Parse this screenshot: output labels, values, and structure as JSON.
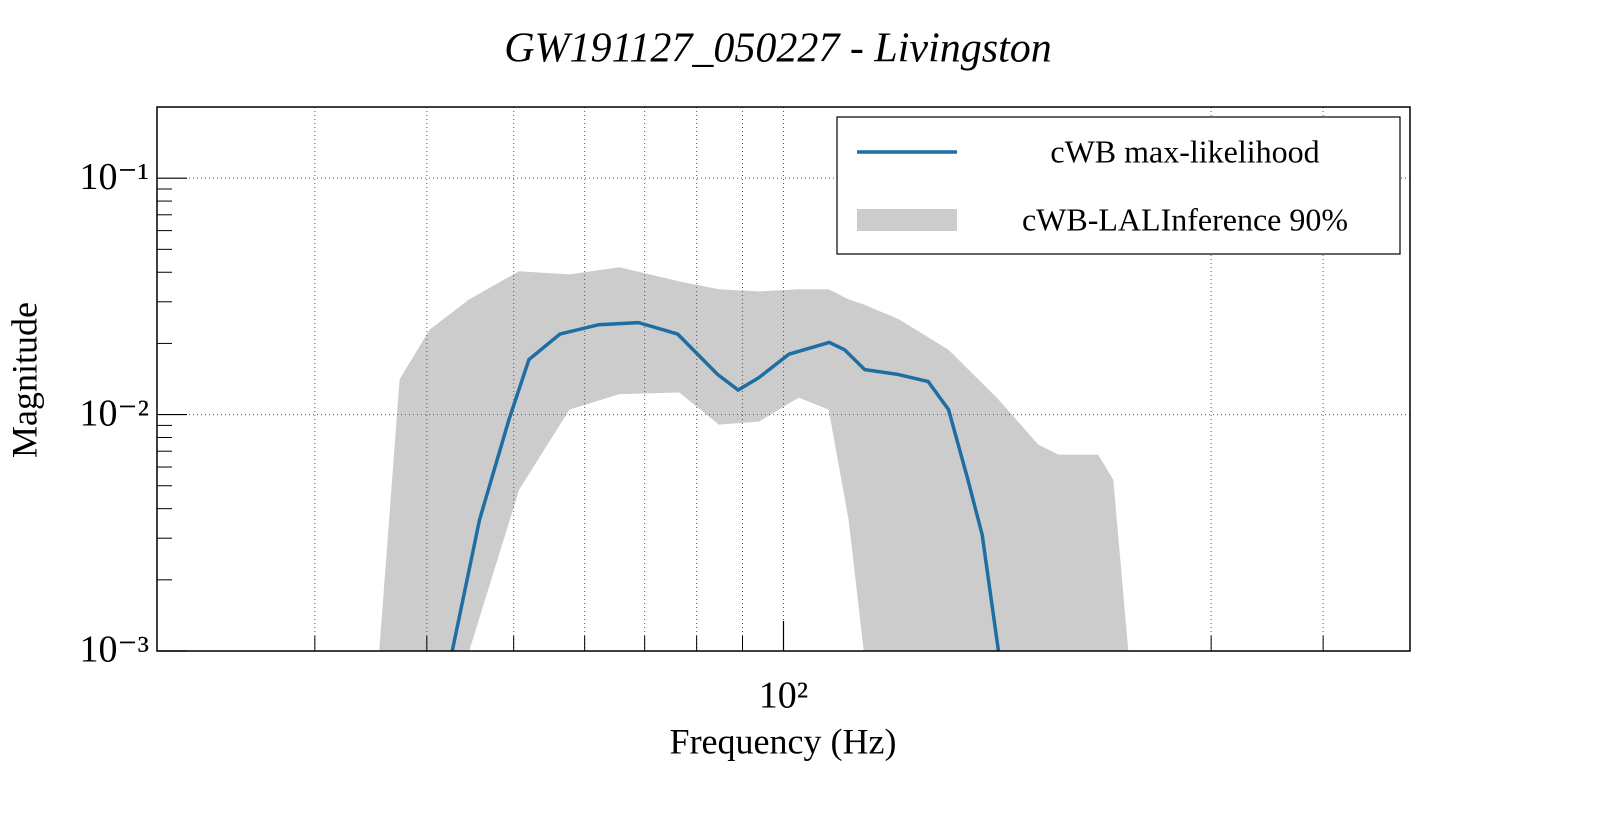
{
  "chart_data": {
    "type": "line",
    "title": "GW191127_050227 - Livingston",
    "xlabel": "Frequency (Hz)",
    "ylabel": "Magnitude",
    "xscale": "log",
    "yscale": "log",
    "xlim": [
      20,
      500
    ],
    "ylim": [
      0.001,
      0.2
    ],
    "xticks": [
      {
        "value": 100,
        "label": "10²"
      }
    ],
    "xgrid": [
      30,
      40,
      50,
      60,
      70,
      80,
      90,
      100,
      300,
      400
    ],
    "yticks": [
      {
        "value": 0.001,
        "label": "10⁻³"
      },
      {
        "value": 0.01,
        "label": "10⁻²"
      },
      {
        "value": 0.1,
        "label": "10⁻¹"
      }
    ],
    "grid": true,
    "legend": "upper right",
    "band": {
      "name": "cWB-LALInference 90%",
      "color": "#cccccc",
      "x": [
        35.4,
        37.3,
        40.3,
        44.6,
        50.7,
        57.7,
        65.6,
        76.5,
        84.7,
        93.9,
        104.0,
        112.3,
        118.2,
        122.9,
        134.5,
        152.8,
        173.7,
        192.4,
        202.6,
        224.4,
        233.3,
        242.5
      ],
      "upper": [
        0.001,
        0.0141,
        0.0229,
        0.0307,
        0.0404,
        0.0392,
        0.042,
        0.0366,
        0.0339,
        0.0332,
        0.0339,
        0.0339,
        0.0307,
        0.0292,
        0.0253,
        0.0188,
        0.0116,
        0.00746,
        0.00677,
        0.00677,
        0.0053,
        0.001
      ],
      "lower": [
        0.001,
        0.001,
        0.001,
        0.001,
        0.00481,
        0.0105,
        0.0122,
        0.0124,
        0.00907,
        0.00934,
        0.0118,
        0.0105,
        0.00359,
        0.001,
        0.001,
        0.001,
        0.001,
        0.001,
        0.001,
        0.001,
        0.001,
        0.001
      ]
    },
    "series": [
      {
        "name": "cWB max-likelihood",
        "color": "#1f6ea3",
        "x": [
          42.7,
          45.8,
          49.4,
          52.0,
          56.3,
          62.2,
          68.9,
          76.2,
          84.4,
          89.0,
          93.8,
          101.4,
          112.5,
          117.0,
          123.2,
          134.0,
          145.0,
          152.8,
          160.6,
          166.6,
          173.7
        ],
        "values": [
          0.001,
          0.00359,
          0.00953,
          0.0171,
          0.0219,
          0.024,
          0.0245,
          0.0219,
          0.0148,
          0.0127,
          0.0143,
          0.018,
          0.0202,
          0.0188,
          0.0155,
          0.0148,
          0.0138,
          0.0105,
          0.0053,
          0.0031,
          0.001
        ]
      }
    ]
  }
}
